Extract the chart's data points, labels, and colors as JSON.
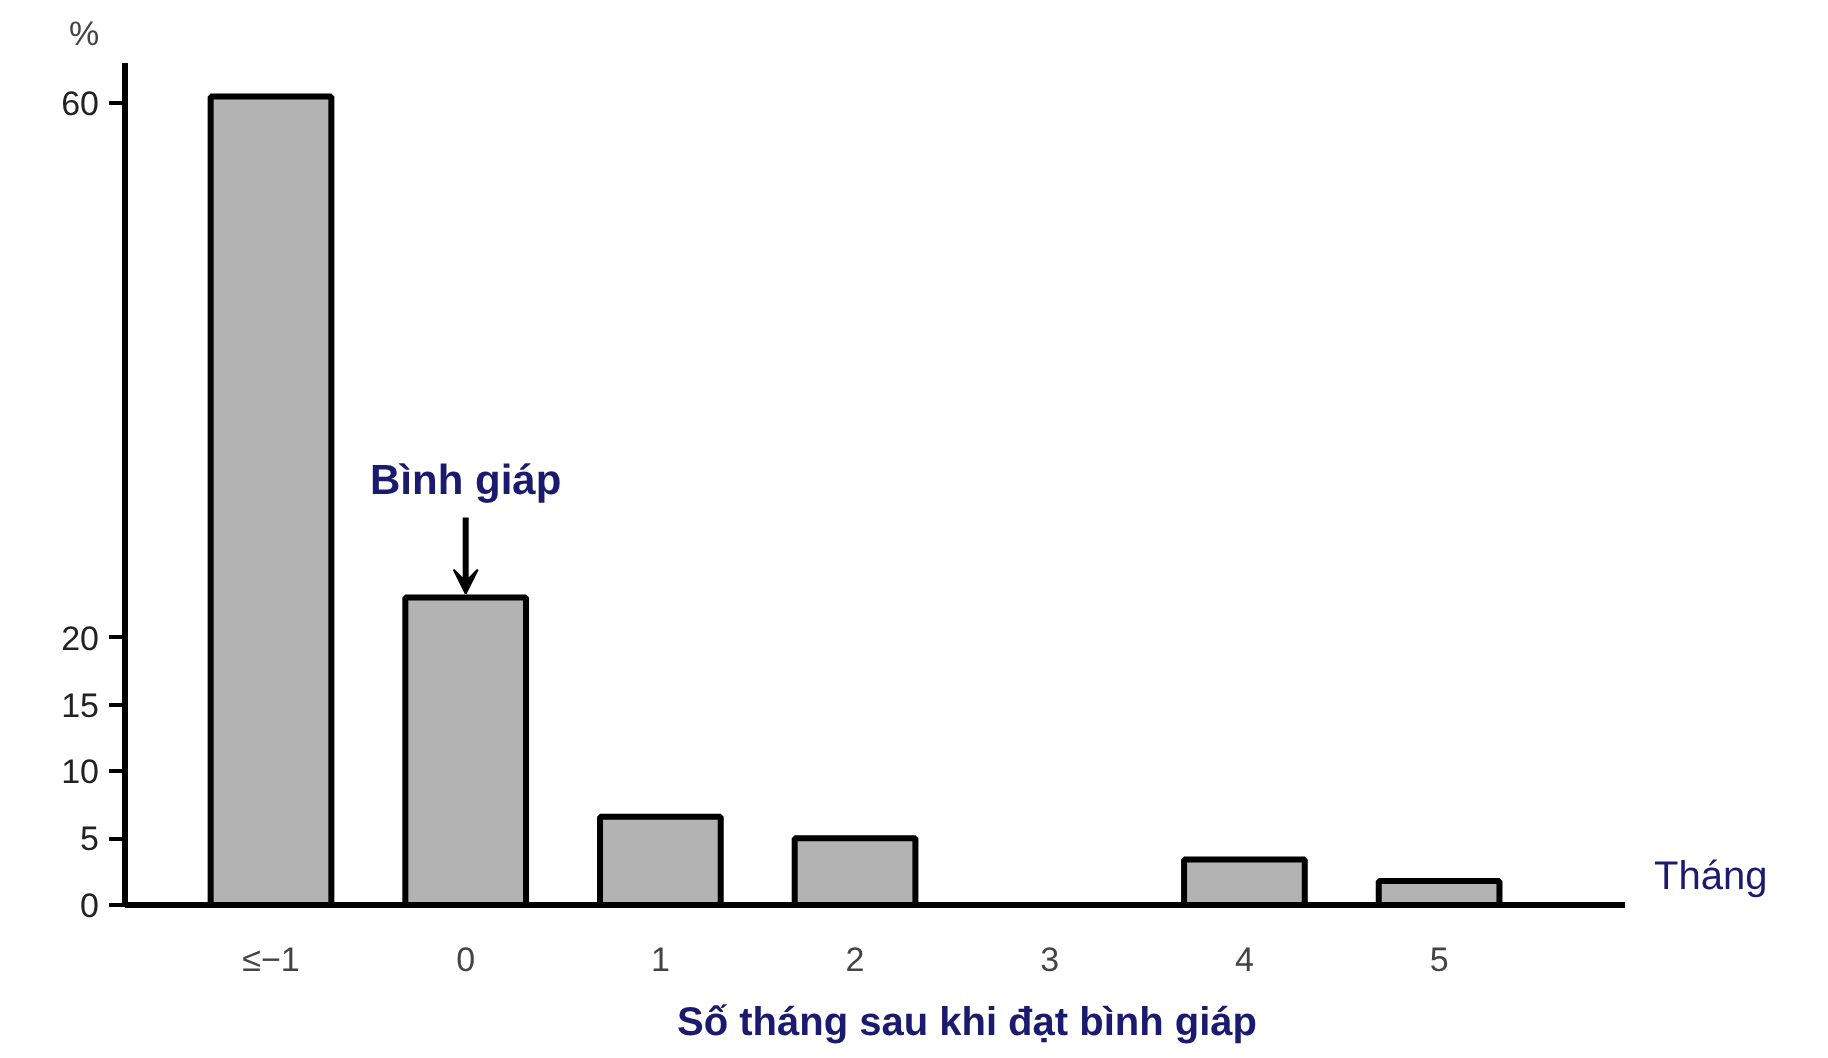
{
  "chart_data": {
    "type": "bar",
    "ylabel": "%",
    "xlabel": "Số tháng sau khi đạt bình giáp",
    "categories": [
      "≤−1",
      "0",
      "1",
      "2",
      "3",
      "4",
      "5"
    ],
    "values": [
      60.5,
      23,
      6.6,
      5,
      0,
      3.4,
      1.8
    ],
    "color": "#b3b3b3",
    "ylim": [
      0,
      63
    ],
    "yticks": [
      0,
      5,
      10,
      15,
      20,
      60
    ],
    "grid": false,
    "annotations": [
      {
        "text": "Bình giáp",
        "x": "0",
        "y": 23
      },
      "Tháng"
    ]
  }
}
